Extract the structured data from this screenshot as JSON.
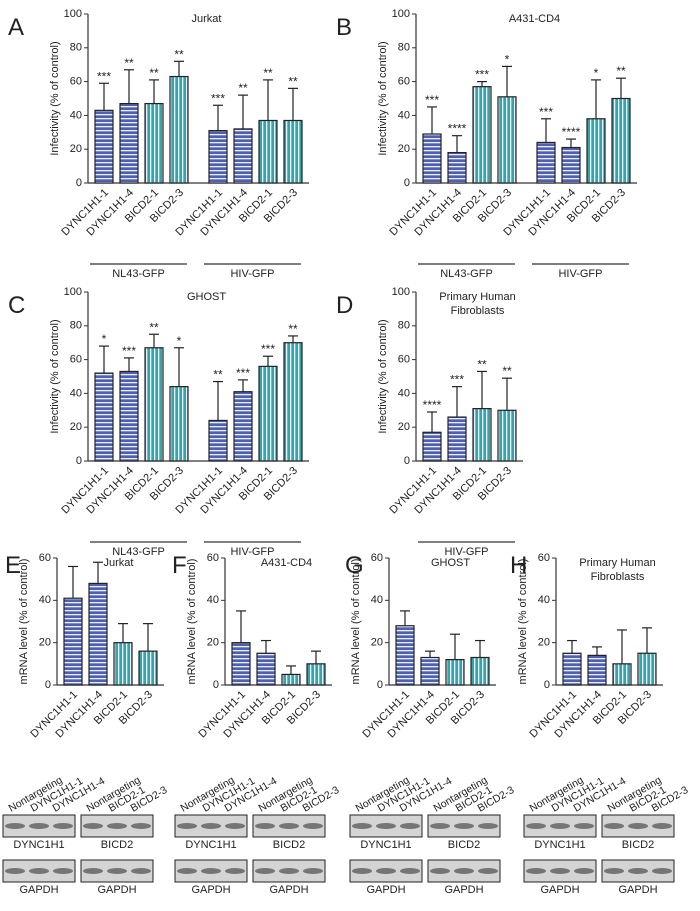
{
  "chart_data": [
    {
      "type": "bar",
      "panel": "A",
      "title": [
        "Jurkat"
      ],
      "ylabel": "Infectivity (% of control)",
      "ylim": [
        0,
        100
      ],
      "yticks": [
        0,
        20,
        40,
        60,
        80,
        100
      ],
      "categories": [
        "DYNC1H1-1",
        "DYNC1H1-4",
        "BICD2-1",
        "BICD2-3",
        "DYNC1H1-1",
        "DYNC1H1-4",
        "BICD2-1",
        "BICD2-3"
      ],
      "values": [
        43,
        47,
        47,
        63,
        31,
        32,
        37,
        37
      ],
      "errors": [
        16,
        20,
        14,
        9,
        15,
        20,
        24,
        19
      ],
      "annotations": [
        "***",
        "**",
        "**",
        "**",
        "***",
        "**",
        "**",
        "**"
      ],
      "colors": [
        "#5060b0",
        "#5060b0",
        "#30a8a8",
        "#30a8a8",
        "#5060b0",
        "#5060b0",
        "#30a8a8",
        "#30a8a8"
      ],
      "groups": [
        "NL43-GFP",
        "HIV-GFP"
      ]
    },
    {
      "type": "bar",
      "panel": "B",
      "title": [
        "A431-CD4"
      ],
      "ylabel": "Infectivity (% of control)",
      "ylim": [
        0,
        100
      ],
      "yticks": [
        0,
        20,
        40,
        60,
        80,
        100
      ],
      "categories": [
        "DYNC1H1-1",
        "DYNC1H1-4",
        "BICD2-1",
        "BICD2-3",
        "DYNC1H1-1",
        "DYNC1H1-4",
        "BICD2-1",
        "BICD2-3"
      ],
      "values": [
        29,
        18,
        57,
        51,
        24,
        21,
        38,
        50
      ],
      "errors": [
        16,
        10,
        3,
        18,
        14,
        5,
        23,
        12
      ],
      "annotations": [
        "***",
        "****",
        "***",
        "*",
        "***",
        "****",
        "*",
        "**"
      ],
      "colors": [
        "#5060b0",
        "#5060b0",
        "#30a8a8",
        "#30a8a8",
        "#5060b0",
        "#5060b0",
        "#30a8a8",
        "#30a8a8"
      ],
      "groups": [
        "NL43-GFP",
        "HIV-GFP"
      ]
    },
    {
      "type": "bar",
      "panel": "C",
      "title": [
        "GHOST"
      ],
      "ylabel": "Infectivity (% of control)",
      "ylim": [
        0,
        100
      ],
      "yticks": [
        0,
        20,
        40,
        60,
        80,
        100
      ],
      "categories": [
        "DYNC1H1-1",
        "DYNC1H1-4",
        "BICD2-1",
        "BICD2-3",
        "DYNC1H1-1",
        "DYNC1H1-4",
        "BICD2-1",
        "BICD2-3"
      ],
      "values": [
        52,
        53,
        67,
        44,
        24,
        41,
        56,
        70
      ],
      "errors": [
        16,
        8,
        8,
        23,
        23,
        7,
        6,
        4
      ],
      "annotations": [
        "*",
        "***",
        "**",
        "*",
        "**",
        "***",
        "***",
        "**"
      ],
      "colors": [
        "#5060b0",
        "#5060b0",
        "#30a8a8",
        "#30a8a8",
        "#5060b0",
        "#5060b0",
        "#30a8a8",
        "#30a8a8"
      ],
      "groups": [
        "NL43-GFP",
        "HIV-GFP"
      ]
    },
    {
      "type": "bar",
      "panel": "D",
      "title": [
        "Primary Human",
        "Fibroblasts"
      ],
      "ylabel": "Infectivity (% of control)",
      "ylim": [
        0,
        100
      ],
      "yticks": [
        0,
        20,
        40,
        60,
        80,
        100
      ],
      "categories": [
        "DYNC1H1-1",
        "DYNC1H1-4",
        "BICD2-1",
        "BICD2-3"
      ],
      "values": [
        17,
        26,
        31,
        30
      ],
      "errors": [
        12,
        18,
        22,
        19
      ],
      "annotations": [
        "****",
        "***",
        "**",
        "**"
      ],
      "colors": [
        "#5060b0",
        "#5060b0",
        "#30a8a8",
        "#30a8a8"
      ],
      "groups": [
        "HIV-GFP"
      ]
    },
    {
      "type": "bar",
      "panel": "E",
      "title": [
        "Jurkat"
      ],
      "ylabel": "mRNA level (% of control)",
      "ylim": [
        0,
        60
      ],
      "yticks": [
        0,
        20,
        40,
        60
      ],
      "categories": [
        "DYNC1H1-1",
        "DYNC1H1-4",
        "BICD2-1",
        "BICD2-3"
      ],
      "values": [
        41,
        48,
        20,
        16
      ],
      "errors": [
        15,
        10,
        9,
        13
      ],
      "colors": [
        "#5060b0",
        "#5060b0",
        "#30a8a8",
        "#30a8a8"
      ]
    },
    {
      "type": "bar",
      "panel": "F",
      "title": [
        "A431-CD4"
      ],
      "ylabel": "mRNA level (% of control)",
      "ylim": [
        0,
        60
      ],
      "yticks": [
        0,
        20,
        40,
        60
      ],
      "categories": [
        "DYNC1H1-1",
        "DYNC1H1-4",
        "BICD2-1",
        "BICD2-3"
      ],
      "values": [
        20,
        15,
        5,
        10
      ],
      "errors": [
        15,
        6,
        4,
        6
      ],
      "colors": [
        "#5060b0",
        "#5060b0",
        "#30a8a8",
        "#30a8a8"
      ]
    },
    {
      "type": "bar",
      "panel": "G",
      "title": [
        "GHOST"
      ],
      "ylabel": "mRNA level (% of control)",
      "ylim": [
        0,
        60
      ],
      "yticks": [
        0,
        20,
        40,
        60
      ],
      "categories": [
        "DYNC1H1-1",
        "DYNC1H1-4",
        "BICD2-1",
        "BICD2-3"
      ],
      "values": [
        28,
        13,
        12,
        13
      ],
      "errors": [
        7,
        3,
        12,
        8
      ],
      "colors": [
        "#5060b0",
        "#5060b0",
        "#30a8a8",
        "#30a8a8"
      ]
    },
    {
      "type": "bar",
      "panel": "H",
      "title": [
        "Primary Human",
        "Fibroblasts"
      ],
      "ylabel": "mRNA level (% of control)",
      "ylim": [
        0,
        60
      ],
      "yticks": [
        0,
        20,
        40,
        60
      ],
      "categories": [
        "DYNC1H1-1",
        "DYNC1H1-4",
        "BICD2-1",
        "BICD2-3"
      ],
      "values": [
        15,
        14,
        10,
        15
      ],
      "errors": [
        6,
        4,
        16,
        12
      ],
      "colors": [
        "#5060b0",
        "#5060b0",
        "#30a8a8",
        "#30a8a8"
      ]
    }
  ],
  "blots": [
    {
      "lanes_left": [
        "Nontargeting",
        "DYNC1H1-1",
        "DYNC1H1-4"
      ],
      "lanes_right": [
        "Nontargeting",
        "BICD2-1",
        "BICD2-3"
      ],
      "labels": [
        "DYNC1H1",
        "BICD2",
        "GAPDH",
        "GAPDH"
      ]
    },
    {
      "lanes_left": [
        "Nontargeting",
        "DYNC1H1-1",
        "DYNC1H1-4"
      ],
      "lanes_right": [
        "Nontargeting",
        "BICD2-1",
        "BICD2-3"
      ],
      "labels": [
        "DYNC1H1",
        "BICD2",
        "GAPDH",
        "GAPDH"
      ]
    },
    {
      "lanes_left": [
        "Nontargeting",
        "DYNC1H1-1",
        "DYNC1H1-4"
      ],
      "lanes_right": [
        "Nontargeting",
        "BICD2-1",
        "BICD2-3"
      ],
      "labels": [
        "DYNC1H1",
        "BICD2",
        "GAPDH",
        "GAPDH"
      ]
    },
    {
      "lanes_left": [
        "Nontargeting",
        "DYNC1H1-1",
        "DYNC1H1-4"
      ],
      "lanes_right": [
        "Nontargeting",
        "BICD2-1",
        "BICD2-3"
      ],
      "labels": [
        "DYNC1H1",
        "BICD2",
        "GAPDH",
        "GAPDH"
      ]
    }
  ]
}
